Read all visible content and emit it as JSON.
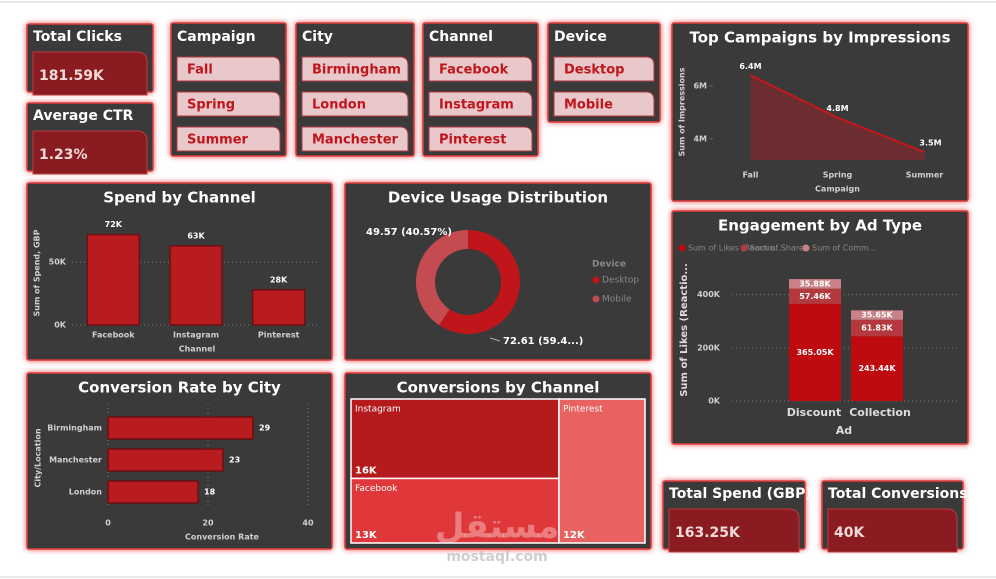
{
  "cards": [
    {
      "title": "Total Clicks",
      "value": "181.59K"
    },
    {
      "title": "Average CTR",
      "value": "1.23%"
    },
    {
      "title": "Total Spend (GBP)",
      "value": "163.25K"
    },
    {
      "title": "Total Conversions",
      "value": "40K"
    }
  ],
  "slicers": [
    {
      "title": "Campaign",
      "items": [
        "Fall",
        "Spring",
        "Summer"
      ]
    },
    {
      "title": "City",
      "items": [
        "Birmingham",
        "London",
        "Manchester"
      ]
    },
    {
      "title": "Channel",
      "items": [
        "Facebook",
        "Instagram",
        "Pinterest"
      ]
    },
    {
      "title": "Device",
      "items": [
        "Desktop",
        "Mobile"
      ]
    }
  ],
  "watermark": {
    "arabic": "مستقل",
    "latin": "mostaql.com"
  },
  "chart_data": [
    {
      "type": "area",
      "title": "Top Campaigns by Impressions",
      "categories": [
        "Fall",
        "Spring",
        "Summer"
      ],
      "values": [
        6400000,
        4800000,
        3500000
      ],
      "value_labels": [
        "6.4M",
        "4.8M",
        "3.5M"
      ],
      "color": "#c8161c",
      "x_label": "Campaign",
      "y_label": "Sum of Impressions",
      "ylim": [
        3200000,
        6600000
      ],
      "yticks": [
        {
          "value": 4000000,
          "label": "4M"
        },
        {
          "value": 6000000,
          "label": "6M"
        }
      ]
    },
    {
      "type": "bar",
      "title": "Spend by Channel",
      "categories": [
        "Facebook",
        "Instagram",
        "Pinterest"
      ],
      "values": [
        72000,
        63000,
        28000
      ],
      "value_labels": [
        "72K",
        "63K",
        "28K"
      ],
      "color": "#b81c1f",
      "x_label": "Channel",
      "y_label": "Sum of Spend, GBP",
      "ylim": [
        0,
        82000
      ],
      "yticks": [
        {
          "value": 0,
          "label": "0K"
        },
        {
          "value": 50000,
          "label": "50K"
        }
      ],
      "grid": true
    },
    {
      "type": "donut",
      "title": "Device Usage Distribution",
      "legend_title": "Device",
      "categories": [
        "Desktop",
        "Mobile"
      ],
      "values": [
        72.61,
        49.57
      ],
      "value_labels": [
        "72.61 (59.4...)",
        "49.57 (40.57%)"
      ],
      "colors": [
        "#c0161b",
        "#c44b50"
      ]
    },
    {
      "type": "hbar",
      "title": "Conversion Rate by City",
      "categories": [
        "Birmingham",
        "Manchester",
        "London"
      ],
      "values": [
        29,
        23,
        18
      ],
      "color": "#b81c1f",
      "x_label": "Conversion Rate",
      "y_label": "City/Location",
      "xlim": [
        0,
        40
      ],
      "xticks": [
        0,
        20,
        40
      ],
      "grid": true
    },
    {
      "type": "treemap",
      "title": "Conversions by Channel",
      "categories": [
        "Instagram",
        "Facebook",
        "Pinterest"
      ],
      "values": [
        16000,
        13000,
        12000
      ],
      "value_labels": [
        "16K",
        "13K",
        "12K"
      ],
      "colors": [
        "#b51a1d",
        "#e0383a",
        "#e86262"
      ]
    },
    {
      "type": "stacked_bar",
      "title": "Engagement by Ad Type",
      "categories": [
        "Discount",
        "Collection"
      ],
      "x_label": "Ad",
      "y_label": "Sum of Likes (Reactio...",
      "series": [
        {
          "name": "Sum of Likes (Reactio...",
          "color": "#bf0a10",
          "values": [
            365050,
            243440
          ],
          "value_labels": [
            "365.05K",
            "243.44K"
          ]
        },
        {
          "name": "Sum of Shares",
          "color": "#b3393e",
          "values": [
            57460,
            61830
          ],
          "value_labels": [
            "57.46K",
            "61.83K"
          ]
        },
        {
          "name": "Sum of Comm...",
          "color": "#c98086",
          "values": [
            35880,
            35650
          ],
          "value_labels": [
            "35.88K",
            "35.65K"
          ]
        }
      ],
      "ylim": [
        0,
        470000
      ],
      "yticks": [
        {
          "value": 0,
          "label": "0K"
        },
        {
          "value": 200000,
          "label": "200K"
        },
        {
          "value": 400000,
          "label": "400K"
        }
      ],
      "grid": true
    }
  ]
}
